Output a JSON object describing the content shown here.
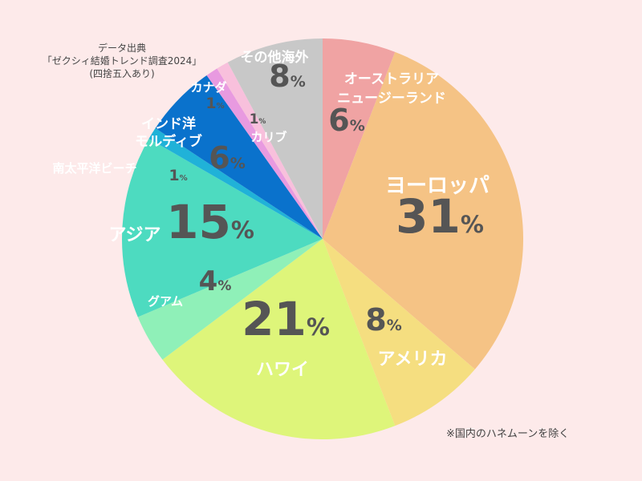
{
  "source": {
    "line1": "データ出典",
    "line2": "「ゼクシィ結婚トレンド調査2024」",
    "line3": "(四捨五入あり)"
  },
  "footnote": "※国内のハネムーンを除く",
  "chart_data": {
    "type": "pie",
    "start_angle_deg": 0,
    "direction": "clockwise",
    "percent_suffix": "%",
    "slices": [
      {
        "name": [
          "オーストラリア",
          "ニュージーランド"
        ],
        "value": 6,
        "color": "#f0a3a3"
      },
      {
        "name": [
          "ヨーロッパ"
        ],
        "value": 31,
        "color": "#f5c385"
      },
      {
        "name": [
          "アメリカ"
        ],
        "value": 8,
        "color": "#f5de80"
      },
      {
        "name": [
          "ハワイ"
        ],
        "value": 21,
        "color": "#def57a"
      },
      {
        "name": [
          "グアム"
        ],
        "value": 4,
        "color": "#8ff0b8"
      },
      {
        "name": [
          "アジア"
        ],
        "value": 15,
        "color": "#4ddbc0"
      },
      {
        "name": [
          "南太平洋ビーチ"
        ],
        "value": 1,
        "color": "#20b2d8"
      },
      {
        "name": [
          "インド洋",
          "モルディブ"
        ],
        "value": 6,
        "color": "#0a72cc"
      },
      {
        "name": [
          "カナダ"
        ],
        "value": 1,
        "color": "#e89ae0"
      },
      {
        "name": [
          "カリブ"
        ],
        "value": 1,
        "color": "#f8c0dc"
      },
      {
        "name": [
          "その他海外"
        ],
        "value": 8,
        "color": "#c8c8c8"
      }
    ]
  }
}
